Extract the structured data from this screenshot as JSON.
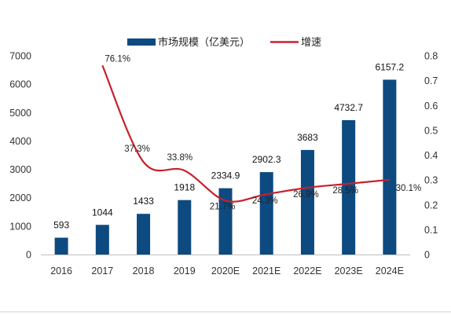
{
  "chart_data": {
    "type": "bar",
    "categories": [
      "2016",
      "2017",
      "2018",
      "2019",
      "2020E",
      "2021E",
      "2022E",
      "2023E",
      "2024E"
    ],
    "series": [
      {
        "name": "市场规模（亿美元）",
        "type": "bar",
        "axis": "left",
        "values": [
          593,
          1044,
          1433,
          1918,
          2334.9,
          2902.3,
          3683,
          4732.7,
          6157.2
        ],
        "labels": [
          "593",
          "1044",
          "1433",
          "1918",
          "2334.9",
          "2902.3",
          "3683",
          "4732.7",
          "6157.2"
        ],
        "color": "#0d4a80"
      },
      {
        "name": "增速",
        "type": "line",
        "axis": "right",
        "values": [
          null,
          0.761,
          0.373,
          0.338,
          0.217,
          0.243,
          0.269,
          0.285,
          0.301
        ],
        "labels": [
          "",
          "76.1%",
          "37.3%",
          "33.8%",
          "21.7%",
          "24.3%",
          "26.9%",
          "28.5%",
          "30.1%"
        ],
        "color": "#c8202b"
      }
    ],
    "y_left": {
      "ylim": [
        0,
        7000
      ],
      "ticks": [
        "0",
        "1000",
        "2000",
        "3000",
        "4000",
        "5000",
        "6000",
        "7000"
      ]
    },
    "y_right": {
      "ylim": [
        0,
        0.8
      ],
      "ticks": [
        "0",
        "0.1",
        "0.2",
        "0.3",
        "0.4",
        "0.5",
        "0.6",
        "0.7",
        "0.8"
      ]
    },
    "legend": {
      "position": "top"
    },
    "grid": false
  }
}
